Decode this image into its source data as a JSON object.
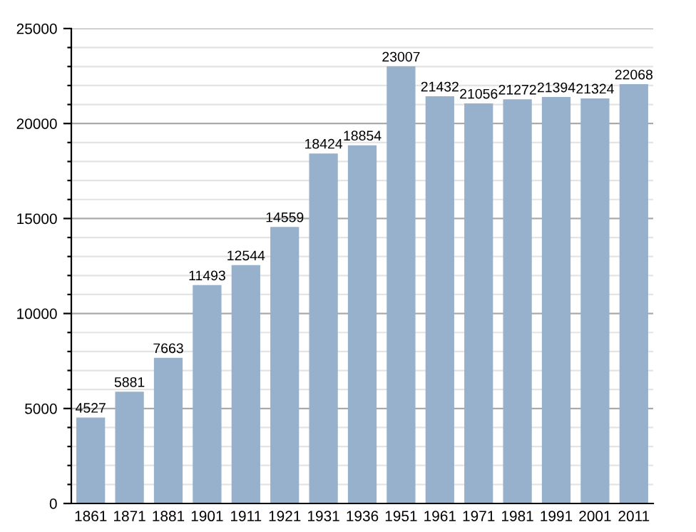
{
  "chart_data": {
    "type": "bar",
    "categories": [
      "1861",
      "1871",
      "1881",
      "1901",
      "1911",
      "1921",
      "1931",
      "1936",
      "1951",
      "1961",
      "1971",
      "1981",
      "1991",
      "2001",
      "2011"
    ],
    "values": [
      4527,
      5881,
      7663,
      11493,
      12544,
      14559,
      18424,
      18854,
      23007,
      21432,
      21056,
      21272,
      21394,
      21324,
      22068
    ],
    "color": "#97b0cb",
    "ylim": [
      0,
      25000
    ],
    "yticks": [
      0,
      {
        "value": 1000,
        "label": null
      },
      {
        "value": 2000,
        "label": null
      },
      {
        "value": 3000,
        "label": null
      },
      {
        "value": 4000,
        "label": null
      },
      5000,
      {
        "value": 6000,
        "label": null
      },
      {
        "value": 7000,
        "label": null
      },
      {
        "value": 8000,
        "label": null
      },
      {
        "value": 9000,
        "label": null
      },
      10000,
      {
        "value": 11000,
        "label": null
      },
      {
        "value": 12000,
        "label": null
      },
      {
        "value": 13000,
        "label": null
      },
      {
        "value": 14000,
        "label": null
      },
      15000,
      {
        "value": 16000,
        "label": null
      },
      {
        "value": 17000,
        "label": null
      },
      {
        "value": 18000,
        "label": null
      },
      {
        "value": 19000,
        "label": null
      },
      20000,
      {
        "value": 21000,
        "label": null
      },
      {
        "value": 22000,
        "label": null
      },
      {
        "value": 23000,
        "label": null
      },
      {
        "value": 24000,
        "label": null
      },
      25000
    ],
    "grid": "y",
    "data_labels": true
  }
}
